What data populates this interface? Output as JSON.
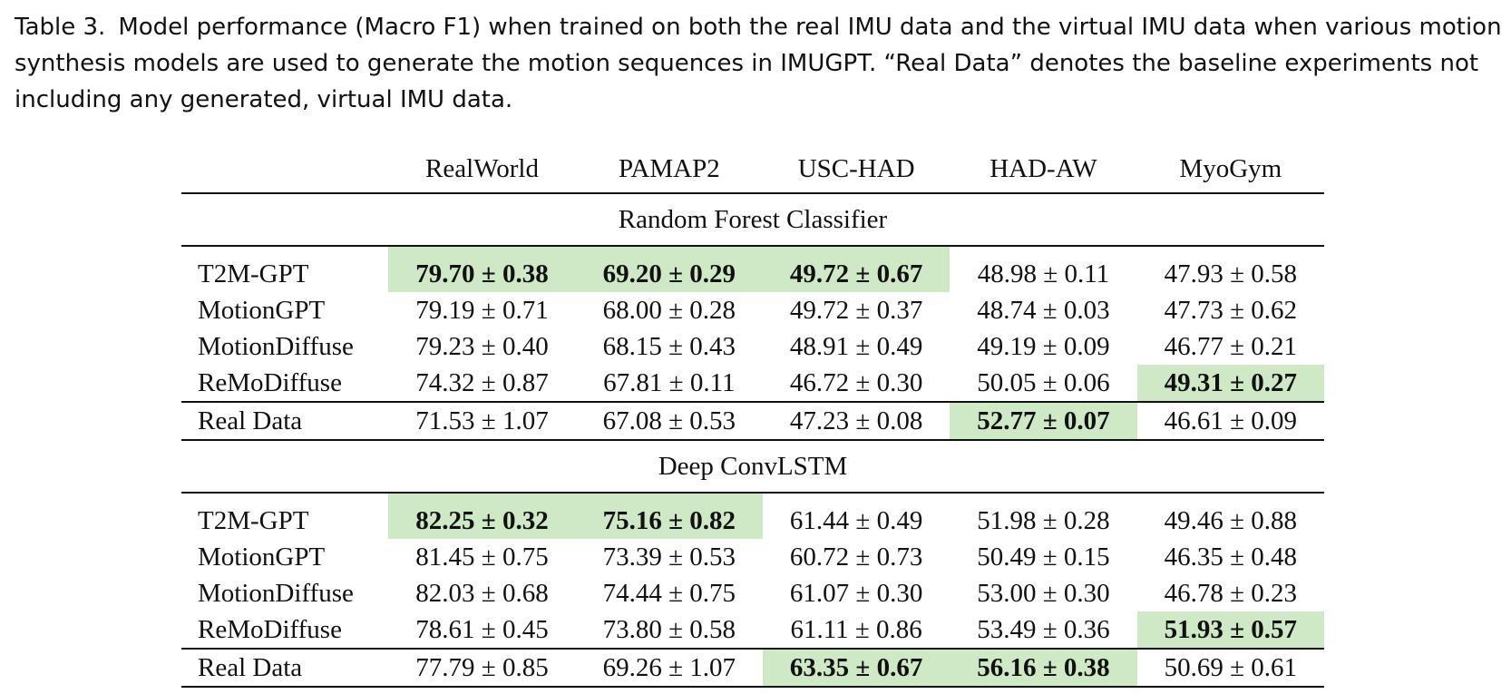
{
  "caption": {
    "label": "Table 3.",
    "text": "Model performance (Macro F1) when trained on both the real IMU data and the virtual IMU data when various motion synthesis models are used to generate the motion sequences in IMUGPT. “Real Data” denotes the baseline experiments not including any generated, virtual IMU data."
  },
  "table": {
    "header": [
      "",
      "RealWorld",
      "PAMAP2",
      "USC-HAD",
      "HAD-AW",
      "MyoGym"
    ],
    "highlight_color": "#cfe9c6",
    "sections": [
      {
        "title": "Random Forest Classifier",
        "rows": [
          {
            "model": "T2M-GPT",
            "cells": [
              {
                "v": "79.70 ± 0.38",
                "best": true
              },
              {
                "v": "69.20 ± 0.29",
                "best": true
              },
              {
                "v": "49.72 ± 0.67",
                "best": true
              },
              {
                "v": "48.98 ± 0.11"
              },
              {
                "v": "47.93 ± 0.58"
              }
            ]
          },
          {
            "model": "MotionGPT",
            "cells": [
              {
                "v": "79.19 ± 0.71"
              },
              {
                "v": "68.00 ± 0.28"
              },
              {
                "v": "49.72 ± 0.37"
              },
              {
                "v": "48.74 ± 0.03"
              },
              {
                "v": "47.73 ± 0.62"
              }
            ]
          },
          {
            "model": "MotionDiffuse",
            "cells": [
              {
                "v": "79.23 ± 0.40"
              },
              {
                "v": "68.15 ± 0.43"
              },
              {
                "v": "48.91 ± 0.49"
              },
              {
                "v": "49.19 ± 0.09"
              },
              {
                "v": "46.77 ± 0.21"
              }
            ]
          },
          {
            "model": "ReMoDiffuse",
            "cells": [
              {
                "v": "74.32 ± 0.87"
              },
              {
                "v": "67.81 ± 0.11"
              },
              {
                "v": "46.72 ± 0.30"
              },
              {
                "v": "50.05 ± 0.06"
              },
              {
                "v": "49.31 ± 0.27",
                "best": true
              }
            ]
          },
          {
            "model": "Real Data",
            "cells": [
              {
                "v": "71.53 ± 1.07"
              },
              {
                "v": "67.08 ± 0.53"
              },
              {
                "v": "47.23 ± 0.08"
              },
              {
                "v": "52.77 ± 0.07",
                "best": true
              },
              {
                "v": "46.61 ± 0.09"
              }
            ]
          }
        ]
      },
      {
        "title": "Deep ConvLSTM",
        "rows": [
          {
            "model": "T2M-GPT",
            "cells": [
              {
                "v": "82.25 ± 0.32",
                "best": true
              },
              {
                "v": "75.16 ± 0.82",
                "best": true
              },
              {
                "v": "61.44 ± 0.49"
              },
              {
                "v": "51.98 ± 0.28"
              },
              {
                "v": "49.46 ± 0.88"
              }
            ]
          },
          {
            "model": "MotionGPT",
            "cells": [
              {
                "v": "81.45 ± 0.75"
              },
              {
                "v": "73.39 ± 0.53"
              },
              {
                "v": "60.72 ± 0.73"
              },
              {
                "v": "50.49 ± 0.15"
              },
              {
                "v": "46.35 ± 0.48"
              }
            ]
          },
          {
            "model": "MotionDiffuse",
            "cells": [
              {
                "v": "82.03 ± 0.68"
              },
              {
                "v": "74.44 ± 0.75"
              },
              {
                "v": "61.07 ± 0.30"
              },
              {
                "v": "53.00 ± 0.30"
              },
              {
                "v": "46.78 ± 0.23"
              }
            ]
          },
          {
            "model": "ReMoDiffuse",
            "cells": [
              {
                "v": "78.61 ± 0.45"
              },
              {
                "v": "73.80 ± 0.58"
              },
              {
                "v": "61.11 ± 0.86"
              },
              {
                "v": "53.49 ± 0.36"
              },
              {
                "v": "51.93 ± 0.57",
                "best": true
              }
            ]
          },
          {
            "model": "Real Data",
            "cells": [
              {
                "v": "77.79 ± 0.85"
              },
              {
                "v": "69.26 ± 1.07"
              },
              {
                "v": "63.35 ± 0.67",
                "best": true
              },
              {
                "v": "56.16 ± 0.38",
                "best": true
              },
              {
                "v": "50.69 ± 0.61"
              }
            ]
          }
        ]
      }
    ]
  }
}
